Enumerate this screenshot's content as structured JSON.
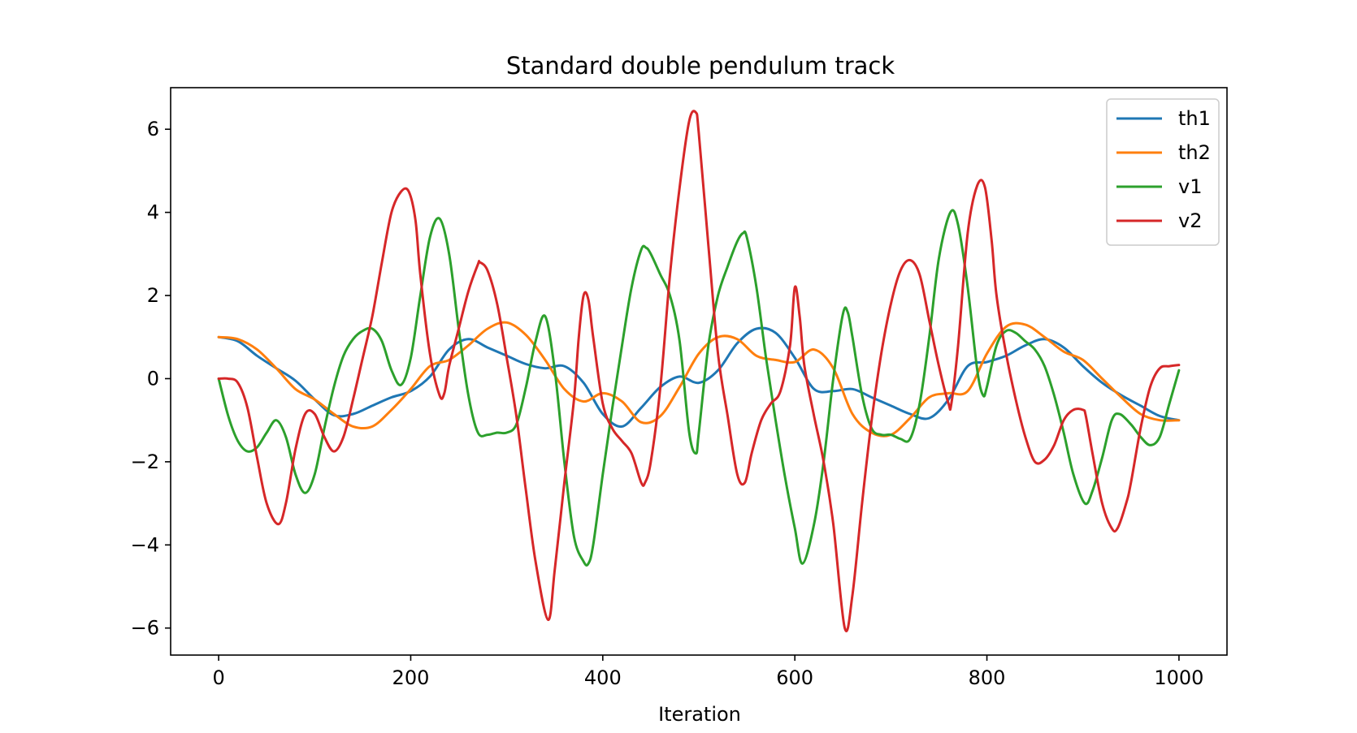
{
  "chart_data": {
    "type": "line",
    "title": "Standard double pendulum track",
    "xlabel": "Iteration",
    "ylabel": "",
    "xlim": [
      -50,
      1050
    ],
    "ylim": [
      -6.65,
      7.0
    ],
    "xticks": [
      0,
      200,
      400,
      600,
      800,
      1000
    ],
    "yticks": [
      -6,
      -4,
      -2,
      0,
      2,
      4,
      6
    ],
    "xtick_labels": [
      "0",
      "200",
      "400",
      "600",
      "800",
      "1000"
    ],
    "ytick_labels": [
      "−6",
      "−4",
      "−2",
      "0",
      "2",
      "4",
      "6"
    ],
    "grid": false,
    "legend_position": "upper right",
    "series": [
      {
        "name": "th1",
        "color": "#1f77b4",
        "x": [
          0,
          20,
          40,
          60,
          80,
          100,
          120,
          140,
          160,
          180,
          200,
          220,
          240,
          260,
          280,
          300,
          320,
          340,
          360,
          380,
          400,
          420,
          440,
          460,
          480,
          500,
          520,
          540,
          560,
          580,
          600,
          620,
          640,
          660,
          680,
          700,
          720,
          740,
          760,
          780,
          800,
          820,
          840,
          860,
          880,
          900,
          920,
          940,
          960,
          980,
          1000
        ],
        "y": [
          1.0,
          0.9,
          0.55,
          0.25,
          -0.05,
          -0.5,
          -0.88,
          -0.85,
          -0.65,
          -0.45,
          -0.3,
          0.05,
          0.7,
          0.95,
          0.75,
          0.55,
          0.35,
          0.25,
          0.3,
          -0.1,
          -0.85,
          -1.15,
          -0.7,
          -0.2,
          0.05,
          -0.1,
          0.2,
          0.85,
          1.2,
          1.1,
          0.5,
          -0.25,
          -0.3,
          -0.25,
          -0.45,
          -0.65,
          -0.85,
          -0.95,
          -0.5,
          0.3,
          0.4,
          0.55,
          0.8,
          0.95,
          0.75,
          0.3,
          -0.1,
          -0.4,
          -0.65,
          -0.9,
          -1.0
        ]
      },
      {
        "name": "th2",
        "color": "#ff7f0e",
        "x": [
          0,
          20,
          40,
          60,
          80,
          100,
          120,
          140,
          160,
          180,
          200,
          220,
          240,
          260,
          280,
          300,
          320,
          340,
          360,
          380,
          400,
          420,
          440,
          460,
          480,
          500,
          520,
          540,
          560,
          580,
          600,
          620,
          640,
          660,
          680,
          700,
          720,
          740,
          760,
          780,
          800,
          820,
          840,
          860,
          880,
          900,
          920,
          940,
          960,
          980,
          1000
        ],
        "y": [
          1.0,
          0.95,
          0.7,
          0.25,
          -0.25,
          -0.5,
          -0.85,
          -1.15,
          -1.15,
          -0.75,
          -0.25,
          0.3,
          0.45,
          0.8,
          1.2,
          1.35,
          1.05,
          0.45,
          -0.25,
          -0.55,
          -0.35,
          -0.55,
          -1.05,
          -0.9,
          -0.2,
          0.6,
          1.0,
          0.95,
          0.55,
          0.45,
          0.4,
          0.7,
          0.25,
          -0.85,
          -1.3,
          -1.35,
          -0.95,
          -0.45,
          -0.35,
          -0.3,
          0.6,
          1.25,
          1.3,
          1.0,
          0.65,
          0.45,
          0.0,
          -0.45,
          -0.85,
          -1.0,
          -1.0
        ]
      },
      {
        "name": "v1",
        "color": "#2ca02c",
        "x": [
          0,
          10,
          20,
          30,
          40,
          50,
          60,
          70,
          80,
          90,
          100,
          110,
          120,
          130,
          140,
          150,
          160,
          170,
          180,
          190,
          200,
          210,
          220,
          230,
          240,
          250,
          260,
          270,
          280,
          290,
          300,
          310,
          320,
          330,
          340,
          350,
          360,
          370,
          380,
          385,
          390,
          400,
          410,
          420,
          430,
          440,
          445,
          450,
          460,
          470,
          480,
          490,
          497,
          500,
          510,
          520,
          530,
          540,
          546,
          550,
          560,
          570,
          580,
          590,
          600,
          608,
          620,
          630,
          640,
          650,
          655,
          660,
          670,
          680,
          690,
          700,
          710,
          720,
          730,
          740,
          750,
          762,
          770,
          780,
          790,
          796,
          800,
          810,
          820,
          830,
          840,
          850,
          860,
          870,
          880,
          890,
          902,
          910,
          920,
          930,
          938,
          950,
          960,
          970,
          980,
          990,
          1000
        ],
        "y": [
          0.0,
          -0.9,
          -1.5,
          -1.75,
          -1.65,
          -1.3,
          -1.0,
          -1.4,
          -2.3,
          -2.75,
          -2.3,
          -1.2,
          -0.2,
          0.55,
          0.95,
          1.15,
          1.2,
          0.9,
          0.2,
          -0.15,
          0.5,
          2.0,
          3.4,
          3.85,
          3.0,
          1.2,
          -0.4,
          -1.3,
          -1.35,
          -1.3,
          -1.3,
          -1.1,
          -0.2,
          0.9,
          1.5,
          0.2,
          -2.0,
          -3.8,
          -4.4,
          -4.45,
          -4.0,
          -2.3,
          -0.7,
          0.8,
          2.2,
          3.1,
          3.15,
          3.0,
          2.5,
          2.0,
          0.9,
          -1.3,
          -1.8,
          -1.3,
          0.8,
          2.0,
          2.7,
          3.3,
          3.5,
          3.4,
          2.2,
          0.5,
          -1.0,
          -2.4,
          -3.6,
          -4.45,
          -3.5,
          -2.0,
          0.0,
          1.55,
          1.6,
          1.0,
          -0.4,
          -1.2,
          -1.35,
          -1.35,
          -1.45,
          -1.45,
          -0.6,
          1.0,
          2.9,
          4.0,
          3.7,
          2.2,
          0.2,
          -0.4,
          -0.2,
          0.8,
          1.15,
          1.1,
          0.9,
          0.7,
          0.3,
          -0.4,
          -1.3,
          -2.3,
          -3.0,
          -2.7,
          -1.9,
          -1.0,
          -0.85,
          -1.1,
          -1.4,
          -1.6,
          -1.4,
          -0.6,
          0.2
        ]
      },
      {
        "name": "v2",
        "color": "#d62728",
        "x": [
          0,
          10,
          20,
          30,
          40,
          50,
          62,
          70,
          80,
          90,
          100,
          110,
          120,
          130,
          140,
          150,
          160,
          170,
          180,
          190,
          198,
          205,
          210,
          220,
          230,
          235,
          240,
          250,
          260,
          270,
          272,
          280,
          290,
          300,
          310,
          320,
          330,
          343,
          350,
          360,
          370,
          375,
          380,
          385,
          390,
          400,
          410,
          420,
          430,
          440,
          444,
          450,
          460,
          470,
          480,
          490,
          497,
          500,
          510,
          520,
          530,
          540,
          548,
          555,
          565,
          575,
          585,
          595,
          600,
          605,
          610,
          620,
          630,
          640,
          652,
          660,
          670,
          680,
          690,
          700,
          710,
          720,
          730,
          740,
          750,
          760,
          763,
          770,
          780,
          790,
          798,
          805,
          810,
          820,
          830,
          840,
          850,
          860,
          870,
          880,
          890,
          900,
          903,
          910,
          920,
          930,
          936,
          945,
          950,
          960,
          970,
          980,
          990,
          1000
        ],
        "y": [
          0.0,
          0.0,
          -0.1,
          -0.7,
          -1.9,
          -3.0,
          -3.5,
          -3.0,
          -1.7,
          -0.85,
          -0.85,
          -1.4,
          -1.75,
          -1.4,
          -0.5,
          0.5,
          1.5,
          2.8,
          4.0,
          4.5,
          4.5,
          3.8,
          2.5,
          0.6,
          -0.4,
          -0.35,
          0.3,
          1.2,
          2.1,
          2.75,
          2.8,
          2.6,
          1.8,
          0.5,
          -0.9,
          -2.7,
          -4.4,
          -5.8,
          -4.6,
          -2.5,
          -0.5,
          1.0,
          2.0,
          1.9,
          1.0,
          -0.6,
          -1.2,
          -1.5,
          -1.8,
          -2.5,
          -2.5,
          -2.0,
          -0.2,
          2.5,
          4.6,
          6.2,
          6.4,
          5.9,
          3.2,
          0.6,
          -0.9,
          -2.3,
          -2.5,
          -1.8,
          -1.0,
          -0.6,
          -0.3,
          0.8,
          2.2,
          1.5,
          0.3,
          -0.9,
          -2.0,
          -3.5,
          -6.0,
          -5.2,
          -3.0,
          -1.0,
          0.6,
          1.8,
          2.6,
          2.85,
          2.5,
          1.4,
          0.3,
          -0.6,
          -0.6,
          0.8,
          3.5,
          4.65,
          4.6,
          3.3,
          2.0,
          0.6,
          -0.5,
          -1.4,
          -2.0,
          -1.95,
          -1.6,
          -1.0,
          -0.75,
          -0.75,
          -0.9,
          -1.8,
          -3.0,
          -3.6,
          -3.6,
          -3.0,
          -2.5,
          -1.2,
          -0.2,
          0.25,
          0.3,
          0.33
        ]
      }
    ]
  }
}
